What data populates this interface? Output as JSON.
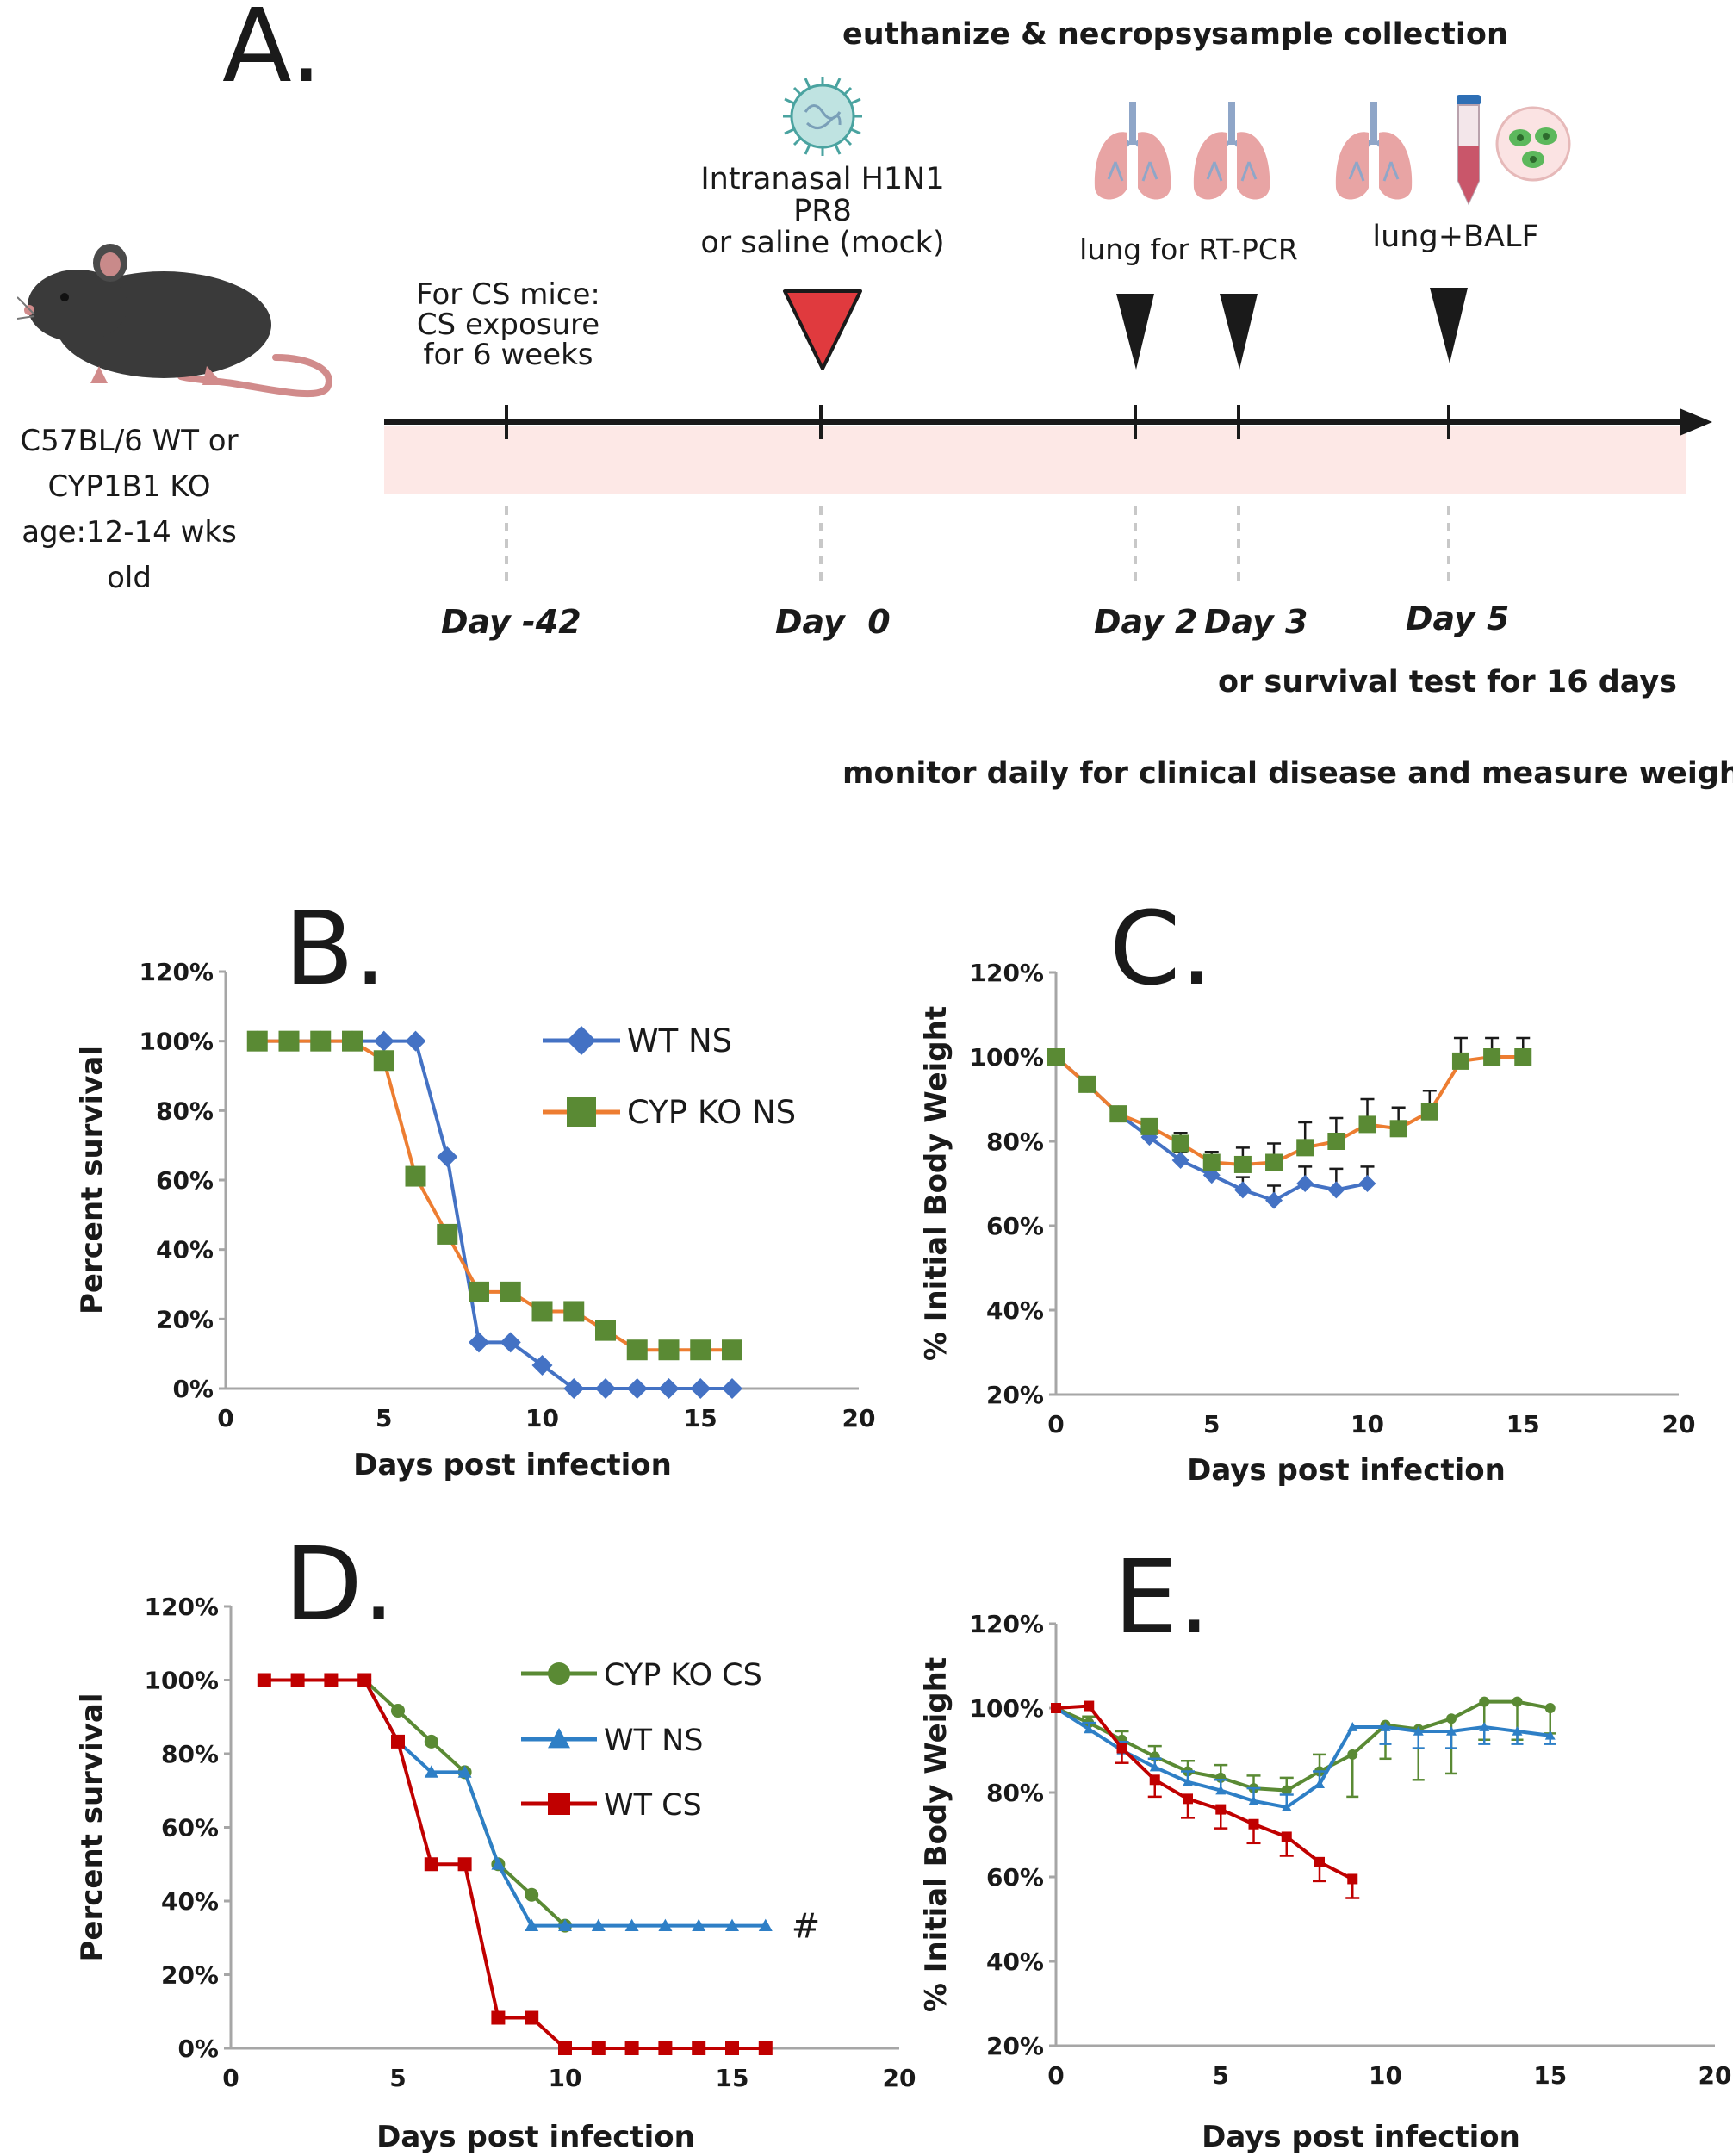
{
  "panel_a": {
    "letter": "A.",
    "header_euthanize": "euthanize & necropsy",
    "header_sample": "sample collection",
    "mouse_caption": [
      "C57BL/6 WT or",
      "CYP1B1 KO",
      "age:12-14 wks old"
    ],
    "cs_note": [
      "For CS mice:",
      "CS exposure",
      "for 6 weeks"
    ],
    "infection_note": [
      "Intranasal H1N1",
      "PR8",
      "or saline (mock)"
    ],
    "lung_rtpcr": "lung for RT-PCR",
    "lung_balf": "lung+BALF",
    "day_labels": [
      "Day -42",
      "Day  0",
      "Day 2",
      "Day 3",
      "Day 5"
    ],
    "survival_note": "or survival test for 16 days",
    "monitor_note": "monitor daily for clinical disease and measure weights",
    "colors": {
      "infection_marker": "#e03a3e",
      "sample_marker": "#1a1a1a",
      "timeline_band": "#fde8e6"
    },
    "icons": [
      "mouse-icon",
      "virus-icon",
      "lungs-icon",
      "tube-icon",
      "cells-icon"
    ]
  },
  "chart_data": [
    {
      "id": "B",
      "letter": "B.",
      "type": "line",
      "xlabel": "Days post infection",
      "ylabel": "Percent survival",
      "xlim": [
        0,
        20
      ],
      "ylim": [
        0,
        120
      ],
      "xticks": [
        "0",
        "5",
        "10",
        "15",
        "20"
      ],
      "yticks": [
        "0%",
        "20%",
        "40%",
        "60%",
        "80%",
        "100%",
        "120%"
      ],
      "legend": [
        "WT NS",
        "CYP KO NS"
      ],
      "series": [
        {
          "name": "WT NS",
          "color": "#4472c4",
          "marker": "diamond",
          "x": [
            1,
            2,
            3,
            4,
            5,
            6,
            7,
            8,
            9,
            10,
            11,
            12,
            13,
            14,
            15,
            16
          ],
          "y": [
            100,
            100,
            100,
            100,
            100,
            100,
            66.7,
            13.3,
            13.3,
            6.7,
            0,
            0,
            0,
            0,
            0,
            0
          ]
        },
        {
          "name": "CYP KO NS",
          "color": "#ed7d31",
          "marker_color": "#5a8a34",
          "marker": "square",
          "x": [
            1,
            2,
            3,
            4,
            5,
            6,
            7,
            8,
            9,
            10,
            11,
            12,
            13,
            14,
            15,
            16
          ],
          "y": [
            100,
            100,
            100,
            100,
            94.4,
            61.1,
            44.4,
            27.8,
            27.8,
            22.2,
            22.2,
            16.7,
            11.1,
            11.1,
            11.1,
            11.1
          ]
        }
      ]
    },
    {
      "id": "C",
      "letter": "C.",
      "type": "line",
      "xlabel": "Days post infection",
      "ylabel": "% Initial Body Weight",
      "xlim": [
        0,
        20
      ],
      "ylim": [
        20,
        120
      ],
      "xticks": [
        "0",
        "5",
        "10",
        "15",
        "20"
      ],
      "yticks": [
        "20%",
        "40%",
        "60%",
        "80%",
        "100%",
        "120%"
      ],
      "series": [
        {
          "name": "WT NS",
          "color": "#4472c4",
          "marker": "diamond",
          "x": [
            0,
            1,
            2,
            3,
            4,
            5,
            6,
            7,
            8,
            9,
            10
          ],
          "y": [
            100,
            93.5,
            86.5,
            81,
            75.5,
            72,
            68.5,
            66,
            70,
            68.5,
            70
          ],
          "err": [
            0,
            0,
            1.5,
            2,
            2,
            2.5,
            3,
            3.5,
            4,
            5,
            4
          ]
        },
        {
          "name": "CYP KO NS",
          "color": "#ed7d31",
          "marker_color": "#5a8a34",
          "marker": "square",
          "x": [
            0,
            1,
            2,
            3,
            4,
            5,
            6,
            7,
            8,
            9,
            10,
            11,
            12,
            13,
            14,
            15
          ],
          "y": [
            100,
            93.5,
            86.5,
            83.5,
            79.5,
            75,
            74.5,
            75,
            78.5,
            80,
            84,
            83,
            87,
            99,
            100,
            100
          ],
          "err": [
            0,
            0,
            1.5,
            1.5,
            2.5,
            2.5,
            4,
            4.5,
            6,
            5.5,
            6,
            5,
            5,
            5.5,
            4.5,
            4.5
          ]
        }
      ]
    },
    {
      "id": "D",
      "letter": "D.",
      "type": "line",
      "xlabel": "Days post infection",
      "ylabel": "Percent survival",
      "xlim": [
        0,
        20
      ],
      "ylim": [
        0,
        120
      ],
      "xticks": [
        "0",
        "5",
        "10",
        "15",
        "20"
      ],
      "yticks": [
        "0%",
        "20%",
        "40%",
        "60%",
        "80%",
        "100%",
        "120%"
      ],
      "legend": [
        "CYP KO CS",
        "WT NS",
        "WT CS"
      ],
      "annotation": "#",
      "series": [
        {
          "name": "CYP KO CS",
          "color": "#5a8a34",
          "marker": "circle",
          "x": [
            4,
            5,
            6,
            7,
            8,
            9,
            10
          ],
          "y": [
            100,
            91.7,
            83.3,
            75,
            50,
            41.7,
            33.3
          ]
        },
        {
          "name": "WT NS",
          "color": "#2e7fc6",
          "marker": "triangle",
          "x": [
            4,
            5,
            6,
            7,
            8,
            9,
            10,
            11,
            12,
            13,
            14,
            15,
            16
          ],
          "y": [
            100,
            83.3,
            75,
            75,
            50,
            33.3,
            33.3,
            33.3,
            33.3,
            33.3,
            33.3,
            33.3,
            33.3
          ]
        },
        {
          "name": "WT CS",
          "color": "#c00000",
          "marker": "square",
          "x": [
            1,
            2,
            3,
            4,
            5,
            6,
            7,
            8,
            9,
            10,
            11,
            12,
            13,
            14,
            15,
            16
          ],
          "y": [
            100,
            100,
            100,
            100,
            83.3,
            50,
            50,
            8.3,
            8.3,
            0,
            0,
            0,
            0,
            0,
            0,
            0
          ]
        }
      ]
    },
    {
      "id": "E",
      "letter": "E.",
      "type": "line",
      "xlabel": "Days post infection",
      "ylabel": "% Initial Body Weight",
      "xlim": [
        0,
        20
      ],
      "ylim": [
        20,
        120
      ],
      "xticks": [
        "0",
        "5",
        "10",
        "15",
        "20"
      ],
      "yticks": [
        "20%",
        "40%",
        "60%",
        "80%",
        "100%",
        "120%"
      ],
      "series": [
        {
          "name": "CYP KO CS",
          "color": "#5a8a34",
          "marker": "circle",
          "x": [
            0,
            1,
            2,
            3,
            4,
            5,
            6,
            7,
            8,
            9,
            10,
            11,
            12,
            13,
            14,
            15
          ],
          "y": [
            100,
            96.5,
            92.5,
            88.5,
            85,
            83.5,
            81,
            80.5,
            85,
            89,
            96,
            95,
            97.5,
            101.5,
            101.5,
            100
          ],
          "err": [
            0,
            1.5,
            2,
            2.5,
            2.5,
            3,
            3,
            3,
            4,
            10,
            8,
            12,
            13,
            9,
            9,
            6
          ]
        },
        {
          "name": "WT NS",
          "color": "#2e7fc6",
          "marker": "triangle",
          "x": [
            0,
            1,
            2,
            3,
            4,
            5,
            6,
            7,
            8,
            9,
            10,
            11,
            12,
            13,
            14,
            15
          ],
          "y": [
            100,
            95,
            90,
            86,
            82.5,
            80.5,
            78,
            76.5,
            82,
            95.5,
            95.5,
            94.5,
            94.5,
            95.5,
            94.5,
            93.5
          ],
          "err": [
            0,
            1.5,
            2,
            2,
            2.5,
            2.5,
            3,
            3,
            3,
            0,
            4,
            4,
            4,
            4,
            3,
            2
          ]
        },
        {
          "name": "WT CS",
          "color": "#c00000",
          "marker": "square",
          "x": [
            0,
            1,
            2,
            3,
            4,
            5,
            6,
            7,
            8,
            9
          ],
          "y": [
            100,
            100.5,
            90.5,
            83,
            78.5,
            76,
            72.5,
            69.5,
            63.5,
            59.5
          ],
          "err": [
            0,
            0,
            3.5,
            4,
            4.5,
            4.5,
            4.5,
            4.5,
            4.5,
            4.5
          ]
        }
      ]
    }
  ]
}
